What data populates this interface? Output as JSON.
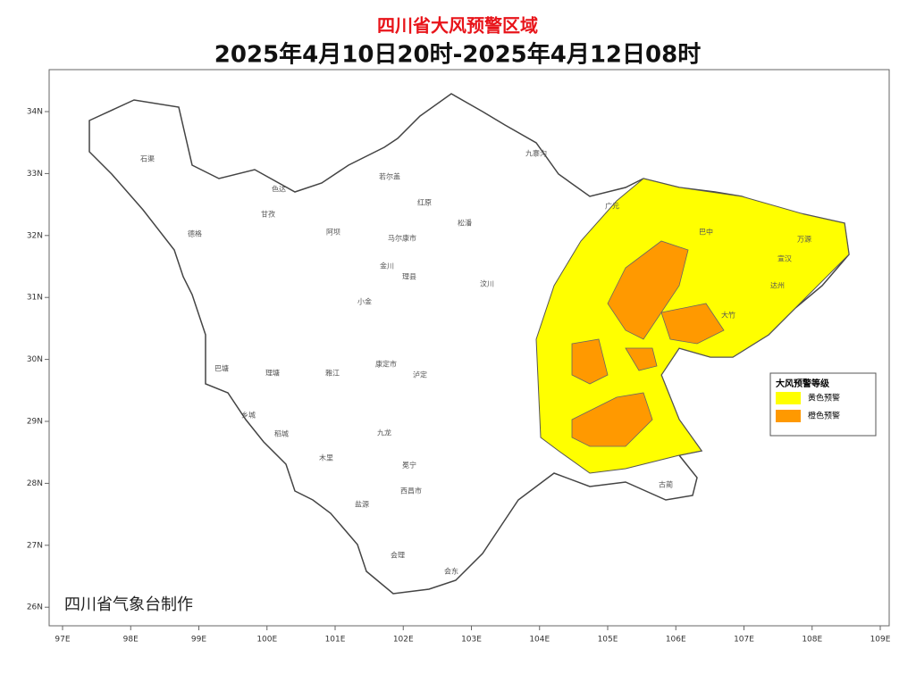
{
  "title": "四川省大风预警区域",
  "subtitle": "2025年4月10日20时-2025年4月12日08时",
  "lon_ticks": [
    {
      "value": 97,
      "label": "97E"
    },
    {
      "value": 98,
      "label": "98E"
    },
    {
      "value": 99,
      "label": "99E"
    },
    {
      "value": 100,
      "label": "100E"
    },
    {
      "value": 101,
      "label": "101E"
    },
    {
      "value": 102,
      "label": "102E"
    },
    {
      "value": 103,
      "label": "103E"
    },
    {
      "value": 104,
      "label": "104E"
    },
    {
      "value": 105,
      "label": "105E"
    },
    {
      "value": 106,
      "label": "106E"
    },
    {
      "value": 107,
      "label": "107E"
    },
    {
      "value": 108,
      "label": "108E"
    },
    {
      "value": 109,
      "label": "109E"
    }
  ],
  "lat_ticks": [
    {
      "value": 26,
      "label": "26N"
    },
    {
      "value": 27,
      "label": "27N"
    },
    {
      "value": 28,
      "label": "28N"
    },
    {
      "value": 29,
      "label": "29N"
    },
    {
      "value": 30,
      "label": "30N"
    },
    {
      "value": 31,
      "label": "31N"
    },
    {
      "value": 32,
      "label": "32N"
    },
    {
      "value": 33,
      "label": "33N"
    },
    {
      "value": 34,
      "label": "34N"
    }
  ],
  "legend": {
    "title": "大风预警等级",
    "items": [
      {
        "label": "黄色预警",
        "color": "#ffff00"
      },
      {
        "label": "橙色预警",
        "color": "#ff9900"
      }
    ]
  },
  "credit": "四川省气象台制作",
  "places": [
    "石渠",
    "德格",
    "甘孜",
    "色达",
    "阿坝",
    "若尔盖",
    "九寨沟",
    "松潘",
    "红原",
    "马尔康市",
    "金川",
    "小金",
    "汶川",
    "理县",
    "康定市",
    "泸定",
    "雅江",
    "理塘",
    "巴塘",
    "乡城",
    "稻城",
    "木里",
    "九龙",
    "冕宁",
    "西昌市",
    "盐源",
    "会理",
    "会东",
    "广元",
    "巴中",
    "万源",
    "宣汉",
    "达州",
    "大竹",
    "古蔺"
  ]
}
